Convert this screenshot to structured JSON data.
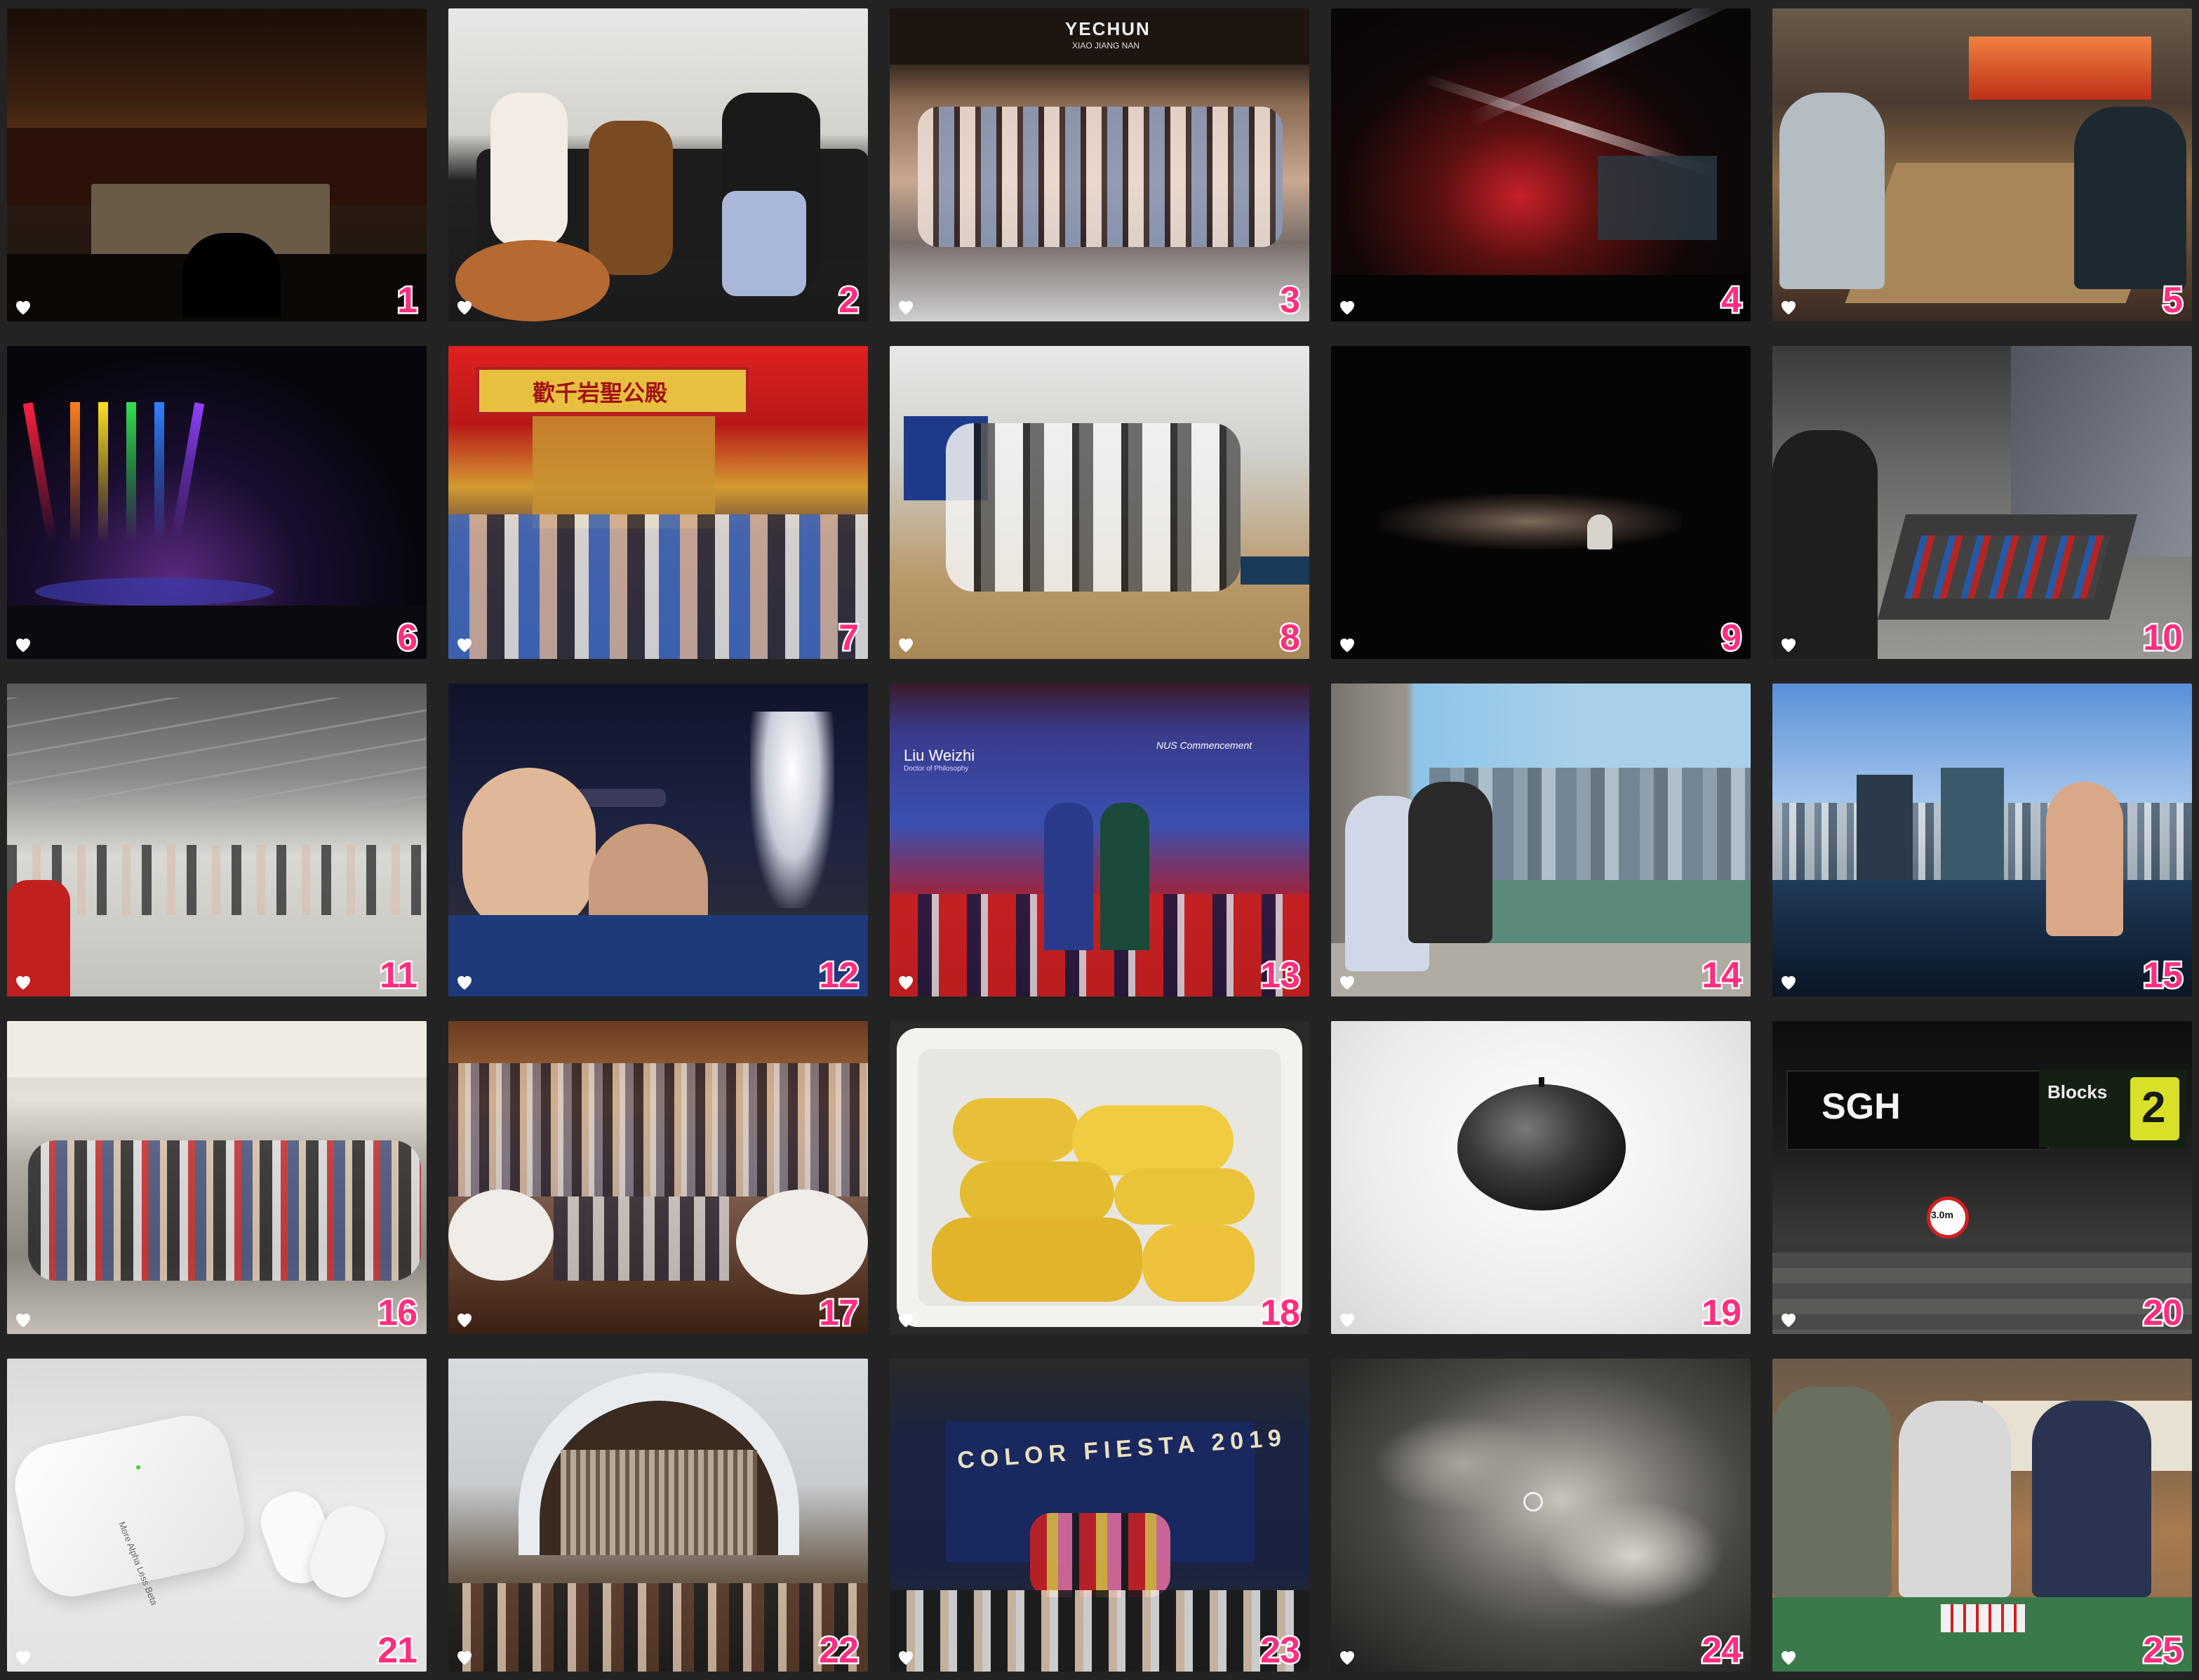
{
  "gallery": {
    "tiles": [
      {
        "number": "1"
      },
      {
        "number": "2"
      },
      {
        "number": "3",
        "sign": "YECHUN",
        "subsign": "XIAO   JIANG   NAN"
      },
      {
        "number": "4"
      },
      {
        "number": "5"
      },
      {
        "number": "6"
      },
      {
        "number": "7",
        "banner": "歡千岩聖公殿"
      },
      {
        "number": "8"
      },
      {
        "number": "9"
      },
      {
        "number": "10"
      },
      {
        "number": "11"
      },
      {
        "number": "12"
      },
      {
        "number": "13",
        "screen_name": "Liu Weizhi",
        "screen_title": "Doctor of Philosophy",
        "screen_logo": "NUS Commencement"
      },
      {
        "number": "14"
      },
      {
        "number": "15"
      },
      {
        "number": "16"
      },
      {
        "number": "17"
      },
      {
        "number": "18"
      },
      {
        "number": "19"
      },
      {
        "number": "20",
        "sign": "SGH",
        "blocks_label": "Blocks",
        "blocks_num": "2",
        "height_sign": "3.0m"
      },
      {
        "number": "21",
        "case_text": "More Alpha Less Beta"
      },
      {
        "number": "22"
      },
      {
        "number": "23",
        "banner": "COLOR FIESTA 2019"
      },
      {
        "number": "24"
      },
      {
        "number": "25"
      }
    ]
  },
  "icons": {
    "favorite": "heart-icon"
  },
  "colors": {
    "background": "#232323",
    "number_fill": "#ff2e7e",
    "number_stroke": "#ffffff",
    "heart": "#ffffff"
  }
}
